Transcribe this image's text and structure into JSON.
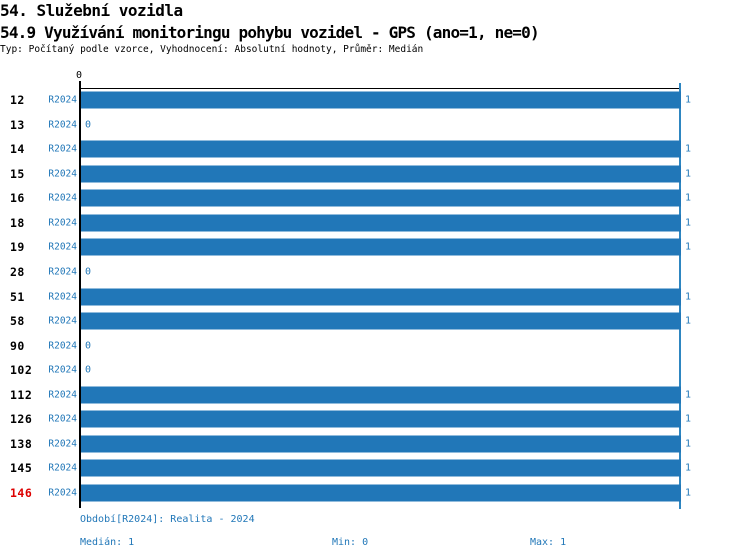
{
  "header": {
    "title_line1": "54. Služební vozidla",
    "title_line2": "54.9 Využívání monitoringu pohybu vozidel - GPS (ano=1, ne=0)",
    "subtitle": "Typ: Počítaný podle vzorce, Vyhodnocení: Absolutní hodnoty, Průměr: Medián"
  },
  "chart_data": {
    "type": "bar",
    "orientation": "horizontal",
    "title": "54.9 Využívání monitoringu pohybu vozidel - GPS (ano=1, ne=0)",
    "categories": [
      "12",
      "13",
      "14",
      "15",
      "16",
      "18",
      "19",
      "28",
      "51",
      "58",
      "90",
      "102",
      "112",
      "126",
      "138",
      "145",
      "146"
    ],
    "series_label": "R2024",
    "values": [
      1,
      0,
      1,
      1,
      1,
      1,
      1,
      0,
      1,
      1,
      0,
      0,
      1,
      1,
      1,
      1,
      1
    ],
    "xlim": [
      0,
      1
    ],
    "axis_top_label": "0",
    "axis_max_label": "1",
    "highlighted_categories": [
      "146"
    ],
    "bar_color": "#2177b8",
    "value_label_color": "#2177b8",
    "period_label_color": "#2177b8",
    "category_label_color": "#000000",
    "highlight_color": "#dd0000",
    "gridline_color": "#2e86c1",
    "legend_position": "none",
    "grid": "right-max-line-only"
  },
  "footer": {
    "period_line": "Období[R2024]: Realita - 2024",
    "median_label": "Medián: 1",
    "min_label": "Min: 0",
    "max_label": "Max: 1",
    "text_color": "#2177b8"
  }
}
